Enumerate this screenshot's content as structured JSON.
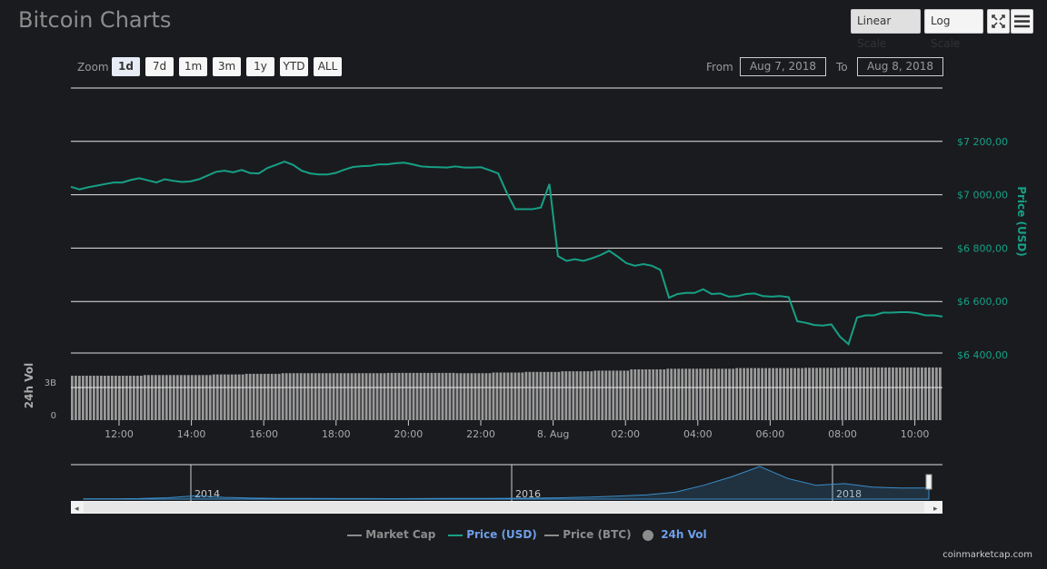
{
  "header": {
    "title": "Bitcoin Charts",
    "linear_scale": "Linear Scale",
    "log_scale": "Log Scale"
  },
  "zoom": {
    "label": "Zoom",
    "options": [
      "1d",
      "7d",
      "1m",
      "3m",
      "1y",
      "YTD",
      "ALL"
    ],
    "selected": "1d"
  },
  "range": {
    "from_label": "From",
    "from_value": "Aug 7, 2018",
    "to_label": "To",
    "to_value": "Aug 8, 2018"
  },
  "colors": {
    "price": "#16a085",
    "background": "#1a1b1f",
    "volume": "#9a9a9a",
    "navigator": "#3a8ec8"
  },
  "chart_data": [
    {
      "type": "line",
      "series": [
        {
          "name": "Price (USD)",
          "values": [
            7030,
            7020,
            7028,
            7034,
            7040,
            7046,
            7046,
            7055,
            7062,
            7054,
            7046,
            7058,
            7052,
            7048,
            7050,
            7058,
            7072,
            7086,
            7090,
            7084,
            7093,
            7081,
            7080,
            7100,
            7112,
            7124,
            7112,
            7090,
            7080,
            7076,
            7076,
            7082,
            7094,
            7104,
            7107,
            7108,
            7114,
            7114,
            7118,
            7120,
            7114,
            7106,
            7104,
            7103,
            7102,
            7106,
            7102,
            7102,
            7103,
            7092,
            7080,
            7008,
            6946,
            6946,
            6946,
            6952,
            7040,
            6770,
            6752,
            6758,
            6752,
            6762,
            6774,
            6790,
            6768,
            6744,
            6734,
            6740,
            6734,
            6718,
            6614,
            6628,
            6632,
            6632,
            6646,
            6628,
            6630,
            6618,
            6620,
            6628,
            6630,
            6620,
            6618,
            6620,
            6616,
            6526,
            6520,
            6512,
            6510,
            6514,
            6468,
            6440,
            6540,
            6548,
            6548,
            6558,
            6558,
            6560,
            6560,
            6556,
            6548,
            6548,
            6544
          ]
        }
      ],
      "x_start": "Aug 7, 2018 10:45",
      "x_end": "Aug 8, 2018 10:30",
      "x_tick_labels": [
        "12:00",
        "14:00",
        "16:00",
        "18:00",
        "20:00",
        "22:00",
        "8. Aug",
        "02:00",
        "04:00",
        "06:00",
        "08:00",
        "10:00"
      ],
      "y_tick_labels": [
        "$7 200,00",
        "$7 000,00",
        "$6 800,00",
        "$6 600,00",
        "$6 400,00"
      ],
      "y_ticks": [
        7200,
        7000,
        6800,
        6600,
        6400
      ],
      "ylim": [
        6400,
        7400
      ],
      "ylabel": "Price (USD)",
      "grid": true
    },
    {
      "type": "bar",
      "series": [
        {
          "name": "24h Vol",
          "values": [
            3.5,
            3.5,
            3.55,
            3.55,
            3.6,
            3.65,
            3.7,
            3.7,
            3.7,
            3.72,
            3.72,
            3.7,
            3.75,
            3.8,
            3.85,
            3.9,
            4.0,
            4.05,
            4.05,
            4.1,
            4.1,
            4.12,
            4.15,
            4.15,
            4.15
          ]
        }
      ],
      "y_tick_labels": [
        "3B",
        "0"
      ],
      "ylabel": "24h Vol",
      "unit": "B"
    },
    {
      "type": "area",
      "name": "navigator",
      "x_tick_labels": [
        "2014",
        "2016",
        "2018"
      ],
      "values": [
        0.2,
        0.2,
        0.3,
        0.8,
        2.0,
        1.0,
        0.6,
        0.4,
        0.35,
        0.3,
        0.3,
        0.28,
        0.3,
        0.35,
        0.4,
        0.5,
        0.6,
        0.8,
        1.2,
        1.8,
        2.5,
        4.0,
        8.0,
        13,
        19,
        12,
        8,
        9,
        7,
        6.5,
        6.5
      ]
    }
  ],
  "legend": {
    "items": [
      {
        "label": "Market Cap",
        "color": "#8c8c8c"
      },
      {
        "label": "Price (USD)",
        "color": "#16a085"
      },
      {
        "label": "Price (BTC)",
        "color": "#8c8c8c"
      },
      {
        "label": "24h Vol",
        "color": "#6e9ee8"
      }
    ]
  },
  "credit": "coinmarketcap.com"
}
